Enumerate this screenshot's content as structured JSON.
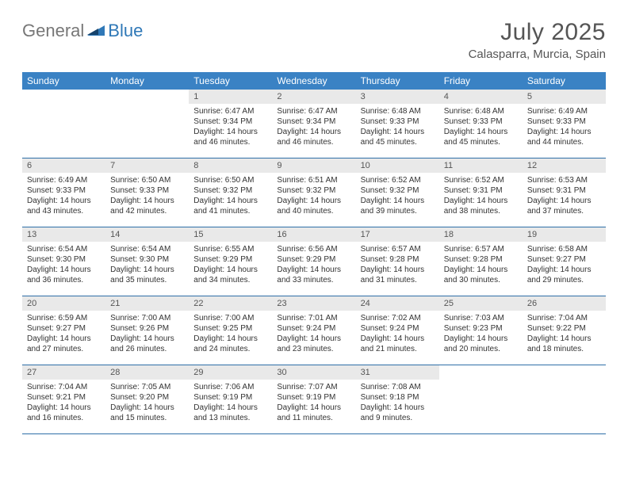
{
  "brand": {
    "text1": "General",
    "text2": "Blue"
  },
  "title": "July 2025",
  "location": "Calasparra, Murcia, Spain",
  "header_bg": "#3a82c4",
  "daynum_bg": "#e9e9e9",
  "border_color": "#2f6fa8",
  "text_color": "#333333",
  "dows": [
    "Sunday",
    "Monday",
    "Tuesday",
    "Wednesday",
    "Thursday",
    "Friday",
    "Saturday"
  ],
  "first_dow_index": 2,
  "days": [
    {
      "n": 1,
      "sr": "6:47 AM",
      "ss": "9:34 PM",
      "dl": "14 hours and 46 minutes."
    },
    {
      "n": 2,
      "sr": "6:47 AM",
      "ss": "9:34 PM",
      "dl": "14 hours and 46 minutes."
    },
    {
      "n": 3,
      "sr": "6:48 AM",
      "ss": "9:33 PM",
      "dl": "14 hours and 45 minutes."
    },
    {
      "n": 4,
      "sr": "6:48 AM",
      "ss": "9:33 PM",
      "dl": "14 hours and 45 minutes."
    },
    {
      "n": 5,
      "sr": "6:49 AM",
      "ss": "9:33 PM",
      "dl": "14 hours and 44 minutes."
    },
    {
      "n": 6,
      "sr": "6:49 AM",
      "ss": "9:33 PM",
      "dl": "14 hours and 43 minutes."
    },
    {
      "n": 7,
      "sr": "6:50 AM",
      "ss": "9:33 PM",
      "dl": "14 hours and 42 minutes."
    },
    {
      "n": 8,
      "sr": "6:50 AM",
      "ss": "9:32 PM",
      "dl": "14 hours and 41 minutes."
    },
    {
      "n": 9,
      "sr": "6:51 AM",
      "ss": "9:32 PM",
      "dl": "14 hours and 40 minutes."
    },
    {
      "n": 10,
      "sr": "6:52 AM",
      "ss": "9:32 PM",
      "dl": "14 hours and 39 minutes."
    },
    {
      "n": 11,
      "sr": "6:52 AM",
      "ss": "9:31 PM",
      "dl": "14 hours and 38 minutes."
    },
    {
      "n": 12,
      "sr": "6:53 AM",
      "ss": "9:31 PM",
      "dl": "14 hours and 37 minutes."
    },
    {
      "n": 13,
      "sr": "6:54 AM",
      "ss": "9:30 PM",
      "dl": "14 hours and 36 minutes."
    },
    {
      "n": 14,
      "sr": "6:54 AM",
      "ss": "9:30 PM",
      "dl": "14 hours and 35 minutes."
    },
    {
      "n": 15,
      "sr": "6:55 AM",
      "ss": "9:29 PM",
      "dl": "14 hours and 34 minutes."
    },
    {
      "n": 16,
      "sr": "6:56 AM",
      "ss": "9:29 PM",
      "dl": "14 hours and 33 minutes."
    },
    {
      "n": 17,
      "sr": "6:57 AM",
      "ss": "9:28 PM",
      "dl": "14 hours and 31 minutes."
    },
    {
      "n": 18,
      "sr": "6:57 AM",
      "ss": "9:28 PM",
      "dl": "14 hours and 30 minutes."
    },
    {
      "n": 19,
      "sr": "6:58 AM",
      "ss": "9:27 PM",
      "dl": "14 hours and 29 minutes."
    },
    {
      "n": 20,
      "sr": "6:59 AM",
      "ss": "9:27 PM",
      "dl": "14 hours and 27 minutes."
    },
    {
      "n": 21,
      "sr": "7:00 AM",
      "ss": "9:26 PM",
      "dl": "14 hours and 26 minutes."
    },
    {
      "n": 22,
      "sr": "7:00 AM",
      "ss": "9:25 PM",
      "dl": "14 hours and 24 minutes."
    },
    {
      "n": 23,
      "sr": "7:01 AM",
      "ss": "9:24 PM",
      "dl": "14 hours and 23 minutes."
    },
    {
      "n": 24,
      "sr": "7:02 AM",
      "ss": "9:24 PM",
      "dl": "14 hours and 21 minutes."
    },
    {
      "n": 25,
      "sr": "7:03 AM",
      "ss": "9:23 PM",
      "dl": "14 hours and 20 minutes."
    },
    {
      "n": 26,
      "sr": "7:04 AM",
      "ss": "9:22 PM",
      "dl": "14 hours and 18 minutes."
    },
    {
      "n": 27,
      "sr": "7:04 AM",
      "ss": "9:21 PM",
      "dl": "14 hours and 16 minutes."
    },
    {
      "n": 28,
      "sr": "7:05 AM",
      "ss": "9:20 PM",
      "dl": "14 hours and 15 minutes."
    },
    {
      "n": 29,
      "sr": "7:06 AM",
      "ss": "9:19 PM",
      "dl": "14 hours and 13 minutes."
    },
    {
      "n": 30,
      "sr": "7:07 AM",
      "ss": "9:19 PM",
      "dl": "14 hours and 11 minutes."
    },
    {
      "n": 31,
      "sr": "7:08 AM",
      "ss": "9:18 PM",
      "dl": "14 hours and 9 minutes."
    }
  ],
  "labels": {
    "sunrise": "Sunrise:",
    "sunset": "Sunset:",
    "daylight": "Daylight:"
  }
}
